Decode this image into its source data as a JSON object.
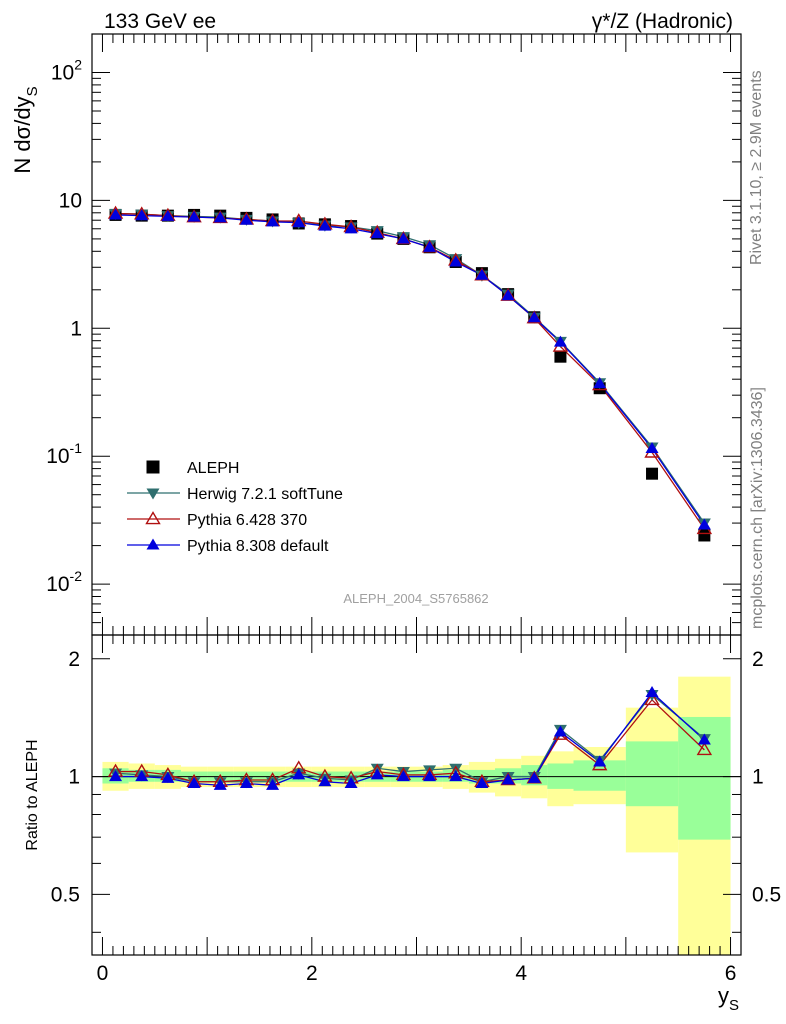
{
  "header": {
    "left": "133 GeV ee",
    "right": "γ*/Z (Hadronic)"
  },
  "side_labels": {
    "rivet": "Rivet 3.1.10, ≥ 2.9M events",
    "mcplots": "mcplots.cern.ch [arXiv:1306.3436]"
  },
  "watermark": "ALEPH_2004_S5765862",
  "chart_data": [
    {
      "type": "scatter",
      "panel": "main",
      "ylabel": "N dσ/dy_S",
      "xlabel": "y_S",
      "yscale": "log",
      "ylim": [
        0.004,
        200
      ],
      "xlim": [
        -0.1,
        6.1
      ],
      "y_tick_labels": [
        "10^-2",
        "10^-1",
        "1",
        "10",
        "10^2"
      ],
      "x_tick_labels": [
        "0",
        "2",
        "4",
        "6"
      ],
      "legend_position": "bottom-left",
      "series": [
        {
          "name": "ALEPH",
          "marker": "square",
          "color": "#000000",
          "x": [
            0.125,
            0.375,
            0.625,
            0.875,
            1.125,
            1.375,
            1.625,
            1.875,
            2.125,
            2.375,
            2.625,
            2.875,
            3.125,
            3.375,
            3.625,
            3.875,
            4.125,
            4.375,
            4.75,
            5.25,
            5.75
          ],
          "y": [
            7.7,
            7.6,
            7.6,
            7.7,
            7.6,
            7.3,
            7.1,
            6.6,
            6.5,
            6.3,
            5.5,
            5.0,
            4.3,
            3.3,
            2.7,
            1.85,
            1.22,
            0.6,
            0.34,
            0.073,
            0.024
          ]
        },
        {
          "name": "Herwig 7.2.1 softTune",
          "marker": "triangle-down",
          "color": "#2f6f6f",
          "x": [
            0.125,
            0.375,
            0.625,
            0.875,
            1.125,
            1.375,
            1.625,
            1.875,
            2.125,
            2.375,
            2.625,
            2.875,
            3.125,
            3.375,
            3.625,
            3.875,
            4.125,
            4.375,
            4.75,
            5.25,
            5.75
          ],
          "y": [
            7.9,
            7.8,
            7.6,
            7.5,
            7.4,
            7.1,
            6.9,
            6.7,
            6.4,
            6.2,
            5.8,
            5.2,
            4.5,
            3.5,
            2.6,
            1.85,
            1.22,
            0.79,
            0.375,
            0.118,
            0.03
          ]
        },
        {
          "name": "Pythia 6.428 370",
          "marker": "triangle-up-open",
          "color": "#b01010",
          "x": [
            0.125,
            0.375,
            0.625,
            0.875,
            1.125,
            1.375,
            1.625,
            1.875,
            2.125,
            2.375,
            2.625,
            2.875,
            3.125,
            3.375,
            3.625,
            3.875,
            4.125,
            4.375,
            4.75,
            5.25,
            5.75
          ],
          "y": [
            7.9,
            7.8,
            7.6,
            7.4,
            7.3,
            7.1,
            6.9,
            6.9,
            6.5,
            6.2,
            5.6,
            5.0,
            4.3,
            3.4,
            2.6,
            1.8,
            1.2,
            0.72,
            0.36,
            0.107,
            0.027
          ]
        },
        {
          "name": "Pythia 8.308 default",
          "marker": "triangle-up",
          "color": "#0000dd",
          "x": [
            0.125,
            0.375,
            0.625,
            0.875,
            1.125,
            1.375,
            1.625,
            1.875,
            2.125,
            2.375,
            2.625,
            2.875,
            3.125,
            3.375,
            3.625,
            3.875,
            4.125,
            4.375,
            4.75,
            5.25,
            5.75
          ],
          "y": [
            7.7,
            7.6,
            7.5,
            7.4,
            7.3,
            7.0,
            6.8,
            6.7,
            6.3,
            6.0,
            5.5,
            5.0,
            4.3,
            3.3,
            2.6,
            1.8,
            1.21,
            0.78,
            0.37,
            0.115,
            0.029
          ]
        }
      ]
    },
    {
      "type": "line",
      "panel": "ratio",
      "ylabel": "Ratio to ALEPH",
      "xlabel": "y_S",
      "yscale": "log",
      "ylim": [
        0.35,
        2.3
      ],
      "xlim": [
        -0.1,
        6.1
      ],
      "y_tick_labels": [
        "0.5",
        "1",
        "2"
      ],
      "x_tick_labels": [
        "0",
        "2",
        "4",
        "6"
      ],
      "bins": [
        [
          0,
          0.25
        ],
        [
          0.25,
          0.5
        ],
        [
          0.5,
          0.75
        ],
        [
          0.75,
          1.0
        ],
        [
          1.0,
          1.25
        ],
        [
          1.25,
          1.5
        ],
        [
          1.5,
          1.75
        ],
        [
          1.75,
          2.0
        ],
        [
          2.0,
          2.25
        ],
        [
          2.25,
          2.5
        ],
        [
          2.5,
          2.75
        ],
        [
          2.75,
          3.0
        ],
        [
          3.0,
          3.25
        ],
        [
          3.25,
          3.5
        ],
        [
          3.5,
          3.75
        ],
        [
          3.75,
          4.0
        ],
        [
          4.0,
          4.25
        ],
        [
          4.25,
          4.5
        ],
        [
          4.5,
          5.0
        ],
        [
          5.0,
          5.5
        ],
        [
          5.5,
          6.0
        ]
      ],
      "band_inner": [
        [
          0.96,
          1.05
        ],
        [
          0.97,
          1.04
        ],
        [
          0.97,
          1.04
        ],
        [
          0.97,
          1.03
        ],
        [
          0.97,
          1.03
        ],
        [
          0.97,
          1.03
        ],
        [
          0.97,
          1.03
        ],
        [
          0.97,
          1.03
        ],
        [
          0.97,
          1.03
        ],
        [
          0.97,
          1.03
        ],
        [
          0.97,
          1.03
        ],
        [
          0.97,
          1.03
        ],
        [
          0.97,
          1.03
        ],
        [
          0.97,
          1.04
        ],
        [
          0.96,
          1.04
        ],
        [
          0.96,
          1.05
        ],
        [
          0.95,
          1.07
        ],
        [
          0.93,
          1.08
        ],
        [
          0.92,
          1.1
        ],
        [
          0.84,
          1.23
        ],
        [
          0.69,
          1.42
        ]
      ],
      "band_outer": [
        [
          0.92,
          1.09
        ],
        [
          0.93,
          1.08
        ],
        [
          0.93,
          1.07
        ],
        [
          0.94,
          1.06
        ],
        [
          0.94,
          1.06
        ],
        [
          0.94,
          1.06
        ],
        [
          0.94,
          1.06
        ],
        [
          0.94,
          1.06
        ],
        [
          0.94,
          1.06
        ],
        [
          0.94,
          1.06
        ],
        [
          0.94,
          1.06
        ],
        [
          0.94,
          1.06
        ],
        [
          0.94,
          1.06
        ],
        [
          0.93,
          1.07
        ],
        [
          0.91,
          1.09
        ],
        [
          0.89,
          1.11
        ],
        [
          0.88,
          1.13
        ],
        [
          0.84,
          1.16
        ],
        [
          0.85,
          1.19
        ],
        [
          0.64,
          1.5
        ],
        [
          0.35,
          1.8
        ]
      ],
      "series": [
        {
          "name": "Herwig 7.2.1 softTune",
          "color": "#2f6f6f",
          "marker": "triangle-down",
          "y": [
            1.02,
            1.01,
            1.0,
            0.97,
            0.97,
            0.97,
            0.97,
            1.02,
            0.99,
            0.98,
            1.05,
            1.03,
            1.04,
            1.05,
            0.97,
            1.0,
            1.0,
            1.32,
            1.1,
            1.62,
            1.25
          ]
        },
        {
          "name": "Pythia 6.428 370",
          "color": "#b01010",
          "marker": "triangle-up-open",
          "y": [
            1.03,
            1.03,
            1.01,
            0.97,
            0.97,
            0.98,
            0.98,
            1.05,
            1.0,
            0.99,
            1.03,
            1.01,
            1.01,
            1.02,
            0.97,
            0.98,
            0.99,
            1.28,
            1.07,
            1.57,
            1.17
          ]
        },
        {
          "name": "Pythia 8.308 default",
          "color": "#0000dd",
          "marker": "triangle-up",
          "y": [
            1.0,
            1.0,
            0.99,
            0.96,
            0.95,
            0.96,
            0.95,
            1.01,
            0.97,
            0.96,
            1.01,
            1.0,
            1.0,
            1.0,
            0.96,
            0.98,
            0.99,
            1.3,
            1.09,
            1.64,
            1.24
          ]
        }
      ]
    }
  ]
}
